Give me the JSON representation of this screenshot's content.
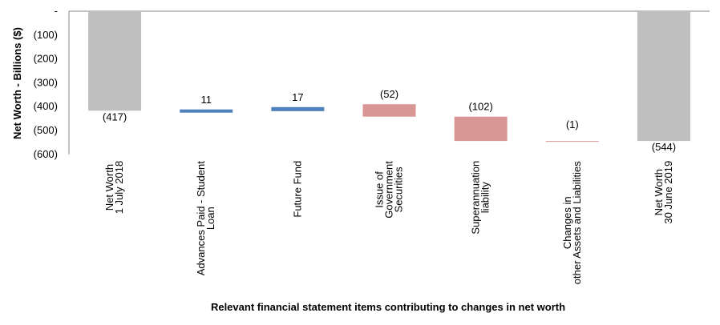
{
  "chart_data": {
    "type": "bar",
    "subtype": "waterfall",
    "title": "",
    "xlabel": "Relevant financial statement items contributing to changes in net worth",
    "ylabel": "Net Worth - Billions ($)",
    "ylim": [
      -600,
      0
    ],
    "yticks": [
      {
        "value": 0,
        "label": "-"
      },
      {
        "value": -100,
        "label": "(100)"
      },
      {
        "value": -200,
        "label": "(200)"
      },
      {
        "value": -300,
        "label": "(300)"
      },
      {
        "value": -400,
        "label": "(400)"
      },
      {
        "value": -500,
        "label": "(500)"
      },
      {
        "value": -600,
        "label": "(600)"
      }
    ],
    "grid": false,
    "bars": [
      {
        "lines": [
          "Net Worth",
          "1 July 2018"
        ],
        "kind": "total",
        "start": 0,
        "end": -417,
        "value": -417,
        "label": "(417)",
        "color": "#bfbfbf"
      },
      {
        "lines": [
          "Advances Paid - Student",
          "Loan"
        ],
        "kind": "delta",
        "start": -424,
        "end": -413,
        "value": 11,
        "label": "11",
        "color": "#4f81bd"
      },
      {
        "lines": [
          "Future Fund"
        ],
        "kind": "delta",
        "start": -419,
        "end": -402,
        "value": 17,
        "label": "17",
        "color": "#4f81bd"
      },
      {
        "lines": [
          "Issue of",
          "Government",
          "Securities"
        ],
        "kind": "delta",
        "start": -390,
        "end": -442,
        "value": -52,
        "label": "(52)",
        "color": "#d99694"
      },
      {
        "lines": [
          "Superannuation",
          "liability"
        ],
        "kind": "delta",
        "start": -442,
        "end": -544,
        "value": -102,
        "label": "(102)",
        "color": "#d99694"
      },
      {
        "lines": [
          "Changes in",
          "other Assets and Liabilities"
        ],
        "kind": "delta",
        "start": -544,
        "end": -545,
        "value": -1,
        "label": "(1)",
        "color": "#d99694"
      },
      {
        "lines": [
          "Net Worth",
          "30 June 2019"
        ],
        "kind": "total",
        "start": 0,
        "end": -544,
        "value": -544,
        "label": "(544)",
        "color": "#bfbfbf"
      }
    ]
  }
}
